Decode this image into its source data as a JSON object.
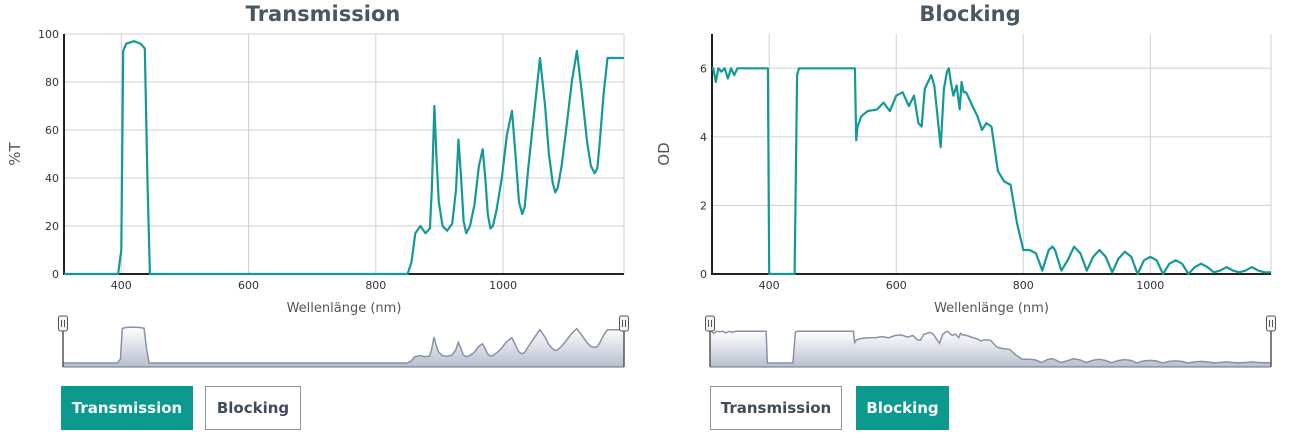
{
  "panels": {
    "transmission": {
      "title": "Transmission",
      "ylabel": "%T",
      "xlabel": "Wellenlänge (nm)",
      "buttons": {
        "transmission": "Transmission",
        "blocking": "Blocking"
      }
    },
    "blocking": {
      "title": "Blocking",
      "ylabel": "OD",
      "xlabel": "Wellenlänge (nm)",
      "buttons": {
        "transmission": "Transmission",
        "blocking": "Blocking"
      }
    }
  },
  "colors": {
    "line": "#149a94",
    "accent": "#0b9a8d",
    "overview_fill": "#b8bfcd",
    "overview_line": "#8891a8"
  },
  "chart_data": [
    {
      "type": "line",
      "title": "Transmission",
      "xlabel": "Wellenlänge (nm)",
      "ylabel": "%T",
      "xlim": [
        310,
        1190
      ],
      "ylim": [
        0,
        100
      ],
      "xticks": [
        400,
        600,
        800,
        1000
      ],
      "yticks": [
        0,
        20,
        40,
        60,
        80,
        100
      ],
      "grid": true,
      "x": [
        310,
        395,
        400,
        403,
        408,
        420,
        430,
        437,
        441,
        445,
        850,
        856,
        862,
        870,
        878,
        885,
        888,
        892,
        895,
        899,
        905,
        912,
        920,
        926,
        930,
        934,
        938,
        942,
        948,
        955,
        962,
        968,
        972,
        976,
        980,
        984,
        990,
        998,
        1006,
        1014,
        1020,
        1025,
        1030,
        1034,
        1040,
        1048,
        1058,
        1066,
        1072,
        1078,
        1082,
        1086,
        1092,
        1100,
        1108,
        1116,
        1124,
        1132,
        1138,
        1144,
        1148,
        1152,
        1158,
        1164,
        1170,
        1176,
        1182,
        1190
      ],
      "y": [
        0,
        0,
        10,
        93,
        96,
        97,
        96,
        94,
        40,
        0,
        0,
        5,
        17,
        20,
        17,
        19,
        35,
        70,
        50,
        30,
        20,
        18,
        21,
        35,
        56,
        40,
        22,
        17,
        20,
        29,
        45,
        52,
        40,
        25,
        19,
        20,
        27,
        40,
        58,
        68,
        48,
        30,
        25,
        28,
        45,
        65,
        90,
        70,
        50,
        38,
        34,
        36,
        45,
        62,
        80,
        93,
        75,
        55,
        45,
        42,
        44,
        55,
        75,
        90,
        90,
        90,
        90,
        90
      ]
    },
    {
      "type": "line",
      "title": "Blocking",
      "xlabel": "Wellenlänge (nm)",
      "ylabel": "OD",
      "xlim": [
        310,
        1190
      ],
      "ylim": [
        0,
        7
      ],
      "xticks": [
        400,
        600,
        800,
        1000
      ],
      "yticks": [
        0,
        2,
        4,
        6
      ],
      "grid": true,
      "x": [
        310,
        312,
        316,
        320,
        325,
        330,
        335,
        340,
        345,
        350,
        360,
        370,
        380,
        390,
        398,
        400,
        402,
        410,
        420,
        430,
        440,
        444,
        447,
        450,
        460,
        480,
        500,
        520,
        535,
        537,
        539,
        545,
        555,
        570,
        580,
        590,
        600,
        610,
        620,
        628,
        635,
        640,
        645,
        650,
        655,
        660,
        665,
        670,
        675,
        680,
        683,
        686,
        690,
        695,
        700,
        703,
        706,
        710,
        715,
        720,
        728,
        735,
        742,
        750,
        760,
        770,
        780,
        790,
        800,
        810,
        820,
        830,
        840,
        846,
        850,
        860,
        870,
        880,
        890,
        900,
        910,
        920,
        930,
        940,
        950,
        960,
        970,
        980,
        990,
        1000,
        1010,
        1020,
        1030,
        1040,
        1050,
        1060,
        1070,
        1080,
        1090,
        1100,
        1110,
        1120,
        1130,
        1140,
        1150,
        1160,
        1170,
        1180,
        1190
      ],
      "y": [
        6,
        6,
        5.6,
        6,
        5.9,
        6,
        5.7,
        6,
        5.8,
        6,
        6,
        6,
        6,
        6,
        6,
        0,
        0,
        0,
        0,
        0,
        0,
        5.8,
        6,
        6,
        6,
        6,
        6,
        6,
        6,
        3.9,
        4.3,
        4.6,
        4.75,
        4.8,
        5.0,
        4.75,
        5.2,
        5.3,
        4.9,
        5.2,
        4.4,
        4.3,
        5.4,
        5.6,
        5.8,
        5.5,
        4.6,
        3.7,
        5.4,
        5.9,
        6.0,
        5.6,
        5.2,
        5.5,
        4.8,
        5.6,
        5.3,
        5.3,
        5.1,
        4.9,
        4.6,
        4.2,
        4.4,
        4.3,
        3.0,
        2.7,
        2.6,
        1.5,
        0.7,
        0.7,
        0.6,
        0.1,
        0.7,
        0.8,
        0.7,
        0.1,
        0.4,
        0.8,
        0.6,
        0.1,
        0.5,
        0.7,
        0.5,
        0.05,
        0.45,
        0.65,
        0.5,
        0.0,
        0.4,
        0.5,
        0.4,
        0.0,
        0.3,
        0.4,
        0.3,
        0.0,
        0.2,
        0.3,
        0.2,
        0.05,
        0.1,
        0.2,
        0.1,
        0.05,
        0.1,
        0.2,
        0.1,
        0.05,
        0.05
      ]
    }
  ]
}
